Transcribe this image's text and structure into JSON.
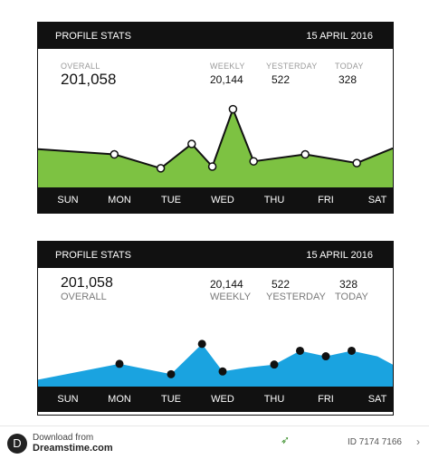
{
  "widgets": [
    {
      "header": {
        "title": "PROFILE STATS",
        "date": "15 APRIL 2016"
      },
      "stats": {
        "overall_label": "OVERALL",
        "overall_value": "201,058",
        "weekly_label": "WEEKLY",
        "weekly_value": "20,144",
        "yesterday_label": "YESTERDAY",
        "yesterday_value": "522",
        "today_label": "TODAY",
        "today_value": "328"
      },
      "colors": {
        "fill": "#7dc242",
        "line": "#111111",
        "marker": "#ffffff"
      }
    },
    {
      "header": {
        "title": "PROFILE STATS",
        "date": "15 APRIL 2016"
      },
      "stats": {
        "overall_label": "OVERALL",
        "overall_value": "201,058",
        "weekly_label": "WEEKLY",
        "weekly_value": "20,144",
        "yesterday_label": "YESTERDAY",
        "yesterday_value": "522",
        "today_label": "TODAY",
        "today_value": "328"
      },
      "colors": {
        "fill": "#1aa3e0",
        "marker": "#111111"
      }
    }
  ],
  "chart_data": [
    {
      "type": "area",
      "categories": [
        "SUN",
        "MON",
        "TUE",
        "WED",
        "THU",
        "FRI",
        "SAT"
      ],
      "x": [
        0.0,
        0.9,
        1.8,
        2.4,
        2.8,
        3.2,
        3.6,
        4.6,
        5.6,
        6.6
      ],
      "y": [
        44,
        38,
        22,
        50,
        24,
        90,
        30,
        38,
        28,
        45
      ],
      "ylim": [
        0,
        100
      ],
      "grid": false,
      "legend": "none"
    },
    {
      "type": "area",
      "categories": [
        "SUN",
        "MON",
        "TUE",
        "WED",
        "THU",
        "FRI",
        "SAT"
      ],
      "x": [
        0.0,
        1.0,
        2.0,
        2.6,
        3.0,
        3.5,
        4.0,
        4.5,
        5.0,
        5.5,
        6.0,
        6.6
      ],
      "y": [
        10,
        33,
        18,
        62,
        22,
        28,
        32,
        52,
        44,
        52,
        44,
        32
      ],
      "markers_at": [
        1,
        2,
        3,
        4,
        6,
        7,
        8,
        9
      ],
      "ylim": [
        0,
        100
      ],
      "grid": false,
      "legend": "none"
    }
  ],
  "footer": {
    "downloaded_from": "Download from",
    "site": "Dreamstime.com",
    "id": "ID 7174 7166"
  }
}
